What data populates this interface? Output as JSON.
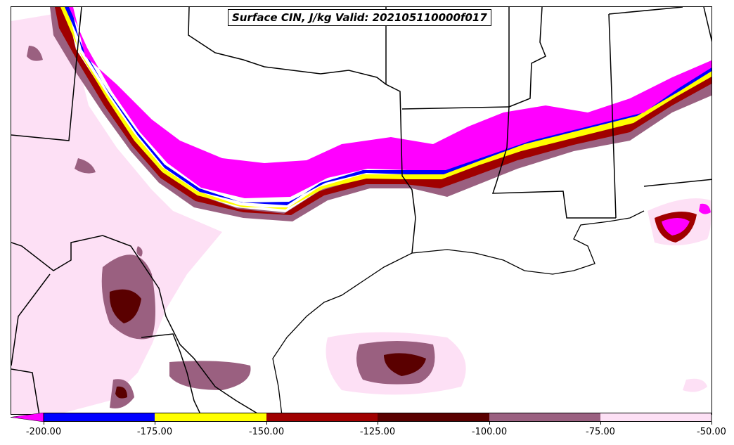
{
  "title": "Surface CIN, J/kg Valid: 202105110000f017",
  "colorbar": {
    "ticks": [
      "-200.00",
      "-175.00",
      "-150.00",
      "-125.00",
      "-100.00",
      "-75.00",
      "-50.00"
    ],
    "colors": [
      "#ff00ff",
      "#0000ff",
      "#ffff00",
      "#a00000",
      "#5a0000",
      "#9a6080",
      "#fde0f5"
    ],
    "extend": "min"
  }
}
